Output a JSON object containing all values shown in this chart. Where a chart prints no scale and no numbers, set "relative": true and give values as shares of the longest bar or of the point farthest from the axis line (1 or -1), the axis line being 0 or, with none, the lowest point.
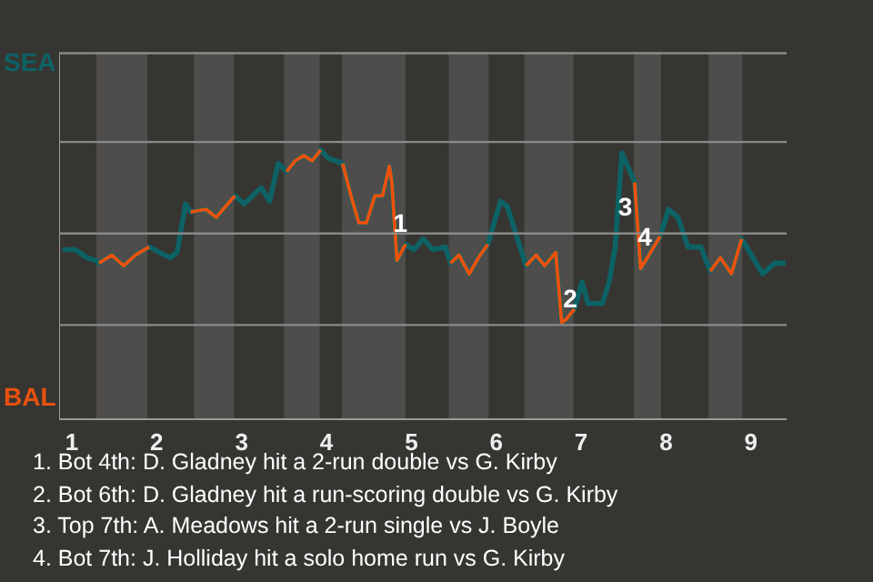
{
  "chart_data": {
    "type": "line",
    "relative": true,
    "xlim": [
      0.85,
      9.42
    ],
    "xticks": [
      {
        "value": 1,
        "label": "1"
      },
      {
        "value": 2,
        "label": "2"
      },
      {
        "value": 3,
        "label": "3"
      },
      {
        "value": 4,
        "label": "4"
      },
      {
        "value": 5,
        "label": "5"
      },
      {
        "value": 6,
        "label": "6"
      },
      {
        "value": 7,
        "label": "7"
      },
      {
        "value": 8,
        "label": "8"
      },
      {
        "value": 9,
        "label": "9"
      }
    ],
    "series": [
      {
        "name": "SEA",
        "color": "#0d6265",
        "x": [
          0.89,
          1.04,
          1.18,
          1.28,
          1.32,
          1.47,
          1.61,
          1.75,
          1.91,
          2.03,
          2.16,
          2.24,
          2.34,
          2.4,
          2.58,
          2.7,
          2.81,
          2.92,
          3.03,
          3.13,
          3.23,
          3.33,
          3.43,
          3.53,
          3.63,
          3.73,
          3.83,
          3.93,
          4.02,
          4.11,
          4.19,
          4.28,
          4.38,
          4.47,
          4.57,
          4.66,
          4.74,
          4.77,
          4.83,
          4.93,
          5.03,
          5.14,
          5.25,
          5.4,
          5.46,
          5.56,
          5.68,
          5.79,
          5.9,
          6.05,
          6.13,
          6.35,
          6.47,
          6.57,
          6.7,
          6.77,
          6.82,
          6.92,
          7.01,
          7.08,
          7.25,
          7.33,
          7.4,
          7.48,
          7.63,
          7.7,
          7.78,
          7.93,
          8.03,
          8.14,
          8.26,
          8.41,
          8.52,
          8.64,
          8.77,
          8.89,
          9.14,
          9.28,
          9.41
        ],
        "values": [
          0.63,
          0.63,
          0.6,
          0.59,
          0.58,
          0.61,
          0.57,
          0.61,
          0.64,
          0.62,
          0.6,
          0.62,
          0.8,
          0.77,
          0.78,
          0.75,
          0.79,
          0.83,
          0.8,
          0.83,
          0.86,
          0.81,
          0.95,
          0.92,
          0.96,
          0.98,
          0.96,
          1.0,
          0.97,
          0.96,
          0.95,
          0.84,
          0.73,
          0.73,
          0.83,
          0.83,
          0.94,
          0.88,
          0.59,
          0.65,
          0.63,
          0.67,
          0.63,
          0.64,
          0.58,
          0.61,
          0.54,
          0.6,
          0.65,
          0.81,
          0.79,
          0.57,
          0.61,
          0.57,
          0.62,
          0.36,
          0.37,
          0.41,
          0.51,
          0.43,
          0.43,
          0.51,
          0.64,
          0.99,
          0.88,
          0.56,
          0.6,
          0.68,
          0.78,
          0.75,
          0.64,
          0.64,
          0.55,
          0.6,
          0.54,
          0.67,
          0.54,
          0.58,
          0.58
        ]
      },
      {
        "name": "BAL",
        "color": "#e8520e",
        "x": [
          1.32,
          1.47,
          1.61,
          1.75,
          1.91,
          1.92,
          2.4,
          2.58,
          2.7,
          2.81,
          2.92,
          2.93,
          3.53,
          3.63,
          3.73,
          3.83,
          3.93,
          3.94,
          4.19,
          4.28,
          4.38,
          4.47,
          4.57,
          4.66,
          4.74,
          4.77,
          4.83,
          4.93,
          4.94,
          5.46,
          5.56,
          5.68,
          5.79,
          5.9,
          5.91,
          6.35,
          6.47,
          6.57,
          6.7,
          6.77,
          6.82,
          6.92,
          6.93,
          7.63,
          7.7,
          7.78,
          7.93,
          7.94,
          8.52,
          8.64,
          8.77,
          8.89
        ],
        "values": [
          0.58,
          0.61,
          0.57,
          0.61,
          0.64,
          null,
          0.77,
          0.78,
          0.75,
          0.79,
          0.83,
          null,
          0.92,
          0.96,
          0.98,
          0.96,
          1.0,
          null,
          0.95,
          0.84,
          0.73,
          0.73,
          0.83,
          0.83,
          0.94,
          0.88,
          0.59,
          0.65,
          null,
          0.58,
          0.61,
          0.54,
          0.6,
          0.65,
          null,
          0.57,
          0.61,
          0.57,
          0.62,
          0.36,
          0.37,
          0.41,
          null,
          0.88,
          0.56,
          0.6,
          0.68,
          null,
          0.55,
          0.6,
          0.54,
          0.67
        ]
      }
    ],
    "ref_lines": [
      {
        "axis": "y",
        "value": 0.35,
        "color": "#8a8a8a"
      },
      {
        "axis": "y",
        "value": 0.69,
        "color": "#8a8a8a"
      },
      {
        "axis": "y",
        "value": 1.03,
        "color": "#8a8a8a"
      },
      {
        "axis": "y",
        "value": 1.36,
        "color": "#8a8a8a"
      }
    ],
    "bands": [
      {
        "axis": "x",
        "from": 1.29,
        "to": 1.89,
        "color": "#4f4d4b"
      },
      {
        "axis": "x",
        "from": 2.44,
        "to": 2.91,
        "color": "#4f4d4b"
      },
      {
        "axis": "x",
        "from": 3.5,
        "to": 3.92,
        "color": "#4f4d4b"
      },
      {
        "axis": "x",
        "from": 4.18,
        "to": 4.93,
        "color": "#4f4d4b"
      },
      {
        "axis": "x",
        "from": 5.44,
        "to": 5.91,
        "color": "#4f4d4b"
      },
      {
        "axis": "x",
        "from": 6.33,
        "to": 6.91,
        "color": "#4f4d4b"
      },
      {
        "axis": "x",
        "from": 7.62,
        "to": 7.94,
        "color": "#4f4d4b"
      },
      {
        "axis": "x",
        "from": 8.5,
        "to": 8.9,
        "color": "#4f4d4b"
      }
    ],
    "annotations": [
      {
        "text": "1",
        "x": 4.87,
        "y": 0.73
      },
      {
        "text": "2",
        "x": 6.87,
        "y": 0.45
      },
      {
        "text": "3",
        "x": 7.52,
        "y": 0.79
      },
      {
        "text": "4",
        "x": 7.75,
        "y": 0.68
      },
      "1. Bot 4th: D. Gladney hit a 2-run double vs G. Kirby",
      "2. Bot 6th: D. Gladney hit a run-scoring double vs G. Kirby",
      "3. Top 7th: A. Meadows hit a 2-run single vs J. Boyle",
      "4. Bot 7th: J. Holliday hit a solo home run vs G. Kirby"
    ]
  }
}
